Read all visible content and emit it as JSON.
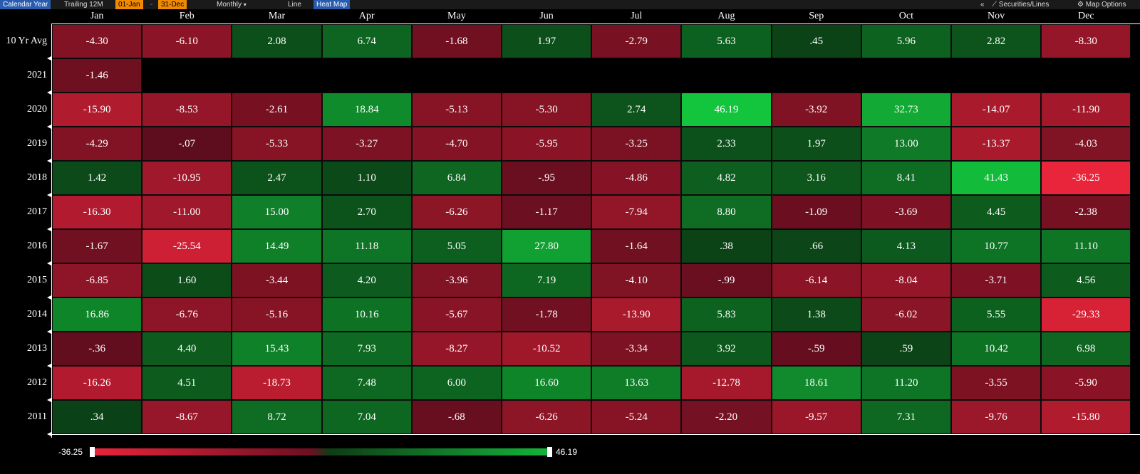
{
  "toolbar": {
    "calendar_year": "Calendar Year",
    "trailing": "Trailing 12M",
    "start_date": "01-Jan",
    "dash": "-",
    "end_date": "31-Dec",
    "period": "Monthly",
    "period_caret": "▾",
    "line": "Line",
    "heat_map": "Heat Map",
    "collapse": "«",
    "securities_icon": "chart-lines-icon",
    "securities": "Securities/Lines",
    "map_options_icon": "gear-icon",
    "map_options": "Map Options"
  },
  "months": [
    "Jan",
    "Feb",
    "Mar",
    "Apr",
    "May",
    "Jun",
    "Jul",
    "Aug",
    "Sep",
    "Oct",
    "Nov",
    "Dec"
  ],
  "rows": [
    {
      "label": "10 Yr Avg",
      "values": [
        "-4.30",
        "-6.10",
        "2.08",
        "6.74",
        "-1.68",
        "1.97",
        "-2.79",
        "5.63",
        ".45",
        "5.96",
        "2.82",
        "-8.30"
      ]
    },
    {
      "label": "2021",
      "values": [
        "-1.46"
      ]
    },
    {
      "label": "2020",
      "values": [
        "-15.90",
        "-8.53",
        "-2.61",
        "18.84",
        "-5.13",
        "-5.30",
        "2.74",
        "46.19",
        "-3.92",
        "32.73",
        "-14.07",
        "-11.90"
      ]
    },
    {
      "label": "2019",
      "values": [
        "-4.29",
        "-.07",
        "-5.33",
        "-3.27",
        "-4.70",
        "-5.95",
        "-3.25",
        "2.33",
        "1.97",
        "13.00",
        "-13.37",
        "-4.03"
      ]
    },
    {
      "label": "2018",
      "values": [
        "1.42",
        "-10.95",
        "2.47",
        "1.10",
        "6.84",
        "-.95",
        "-4.86",
        "4.82",
        "3.16",
        "8.41",
        "41.43",
        "-36.25"
      ]
    },
    {
      "label": "2017",
      "values": [
        "-16.30",
        "-11.00",
        "15.00",
        "2.70",
        "-6.26",
        "-1.17",
        "-7.94",
        "8.80",
        "-1.09",
        "-3.69",
        "4.45",
        "-2.38"
      ]
    },
    {
      "label": "2016",
      "values": [
        "-1.67",
        "-25.54",
        "14.49",
        "11.18",
        "5.05",
        "27.80",
        "-1.64",
        ".38",
        ".66",
        "4.13",
        "10.77",
        "11.10"
      ]
    },
    {
      "label": "2015",
      "values": [
        "-6.85",
        "1.60",
        "-3.44",
        "4.20",
        "-3.96",
        "7.19",
        "-4.10",
        "-.99",
        "-6.14",
        "-8.04",
        "-3.71",
        "4.56"
      ]
    },
    {
      "label": "2014",
      "values": [
        "16.86",
        "-6.76",
        "-5.16",
        "10.16",
        "-5.67",
        "-1.78",
        "-13.90",
        "5.83",
        "1.38",
        "-6.02",
        "5.55",
        "-29.33"
      ]
    },
    {
      "label": "2013",
      "values": [
        "-.36",
        "4.40",
        "15.43",
        "7.93",
        "-8.27",
        "-10.52",
        "-3.34",
        "3.92",
        "-.59",
        ".59",
        "10.42",
        "6.98"
      ]
    },
    {
      "label": "2012",
      "values": [
        "-16.26",
        "4.51",
        "-18.73",
        "7.48",
        "6.00",
        "16.60",
        "13.63",
        "-12.78",
        "18.61",
        "11.20",
        "-3.55",
        "-5.90"
      ]
    },
    {
      "label": "2011",
      "values": [
        ".34",
        "-8.67",
        "8.72",
        "7.04",
        "-.68",
        "-6.26",
        "-5.24",
        "-2.20",
        "-9.57",
        "7.31",
        "-9.76",
        "-15.80"
      ]
    }
  ],
  "scale": {
    "min_label": "-36.25",
    "max_label": "46.19",
    "min": -36.25,
    "max": 46.19
  },
  "colors": {
    "neg_light": "#e8253a",
    "neg_dark": "#5a0c1c",
    "pos_dark": "#0b3a14",
    "pos_light": "#13c43d"
  }
}
